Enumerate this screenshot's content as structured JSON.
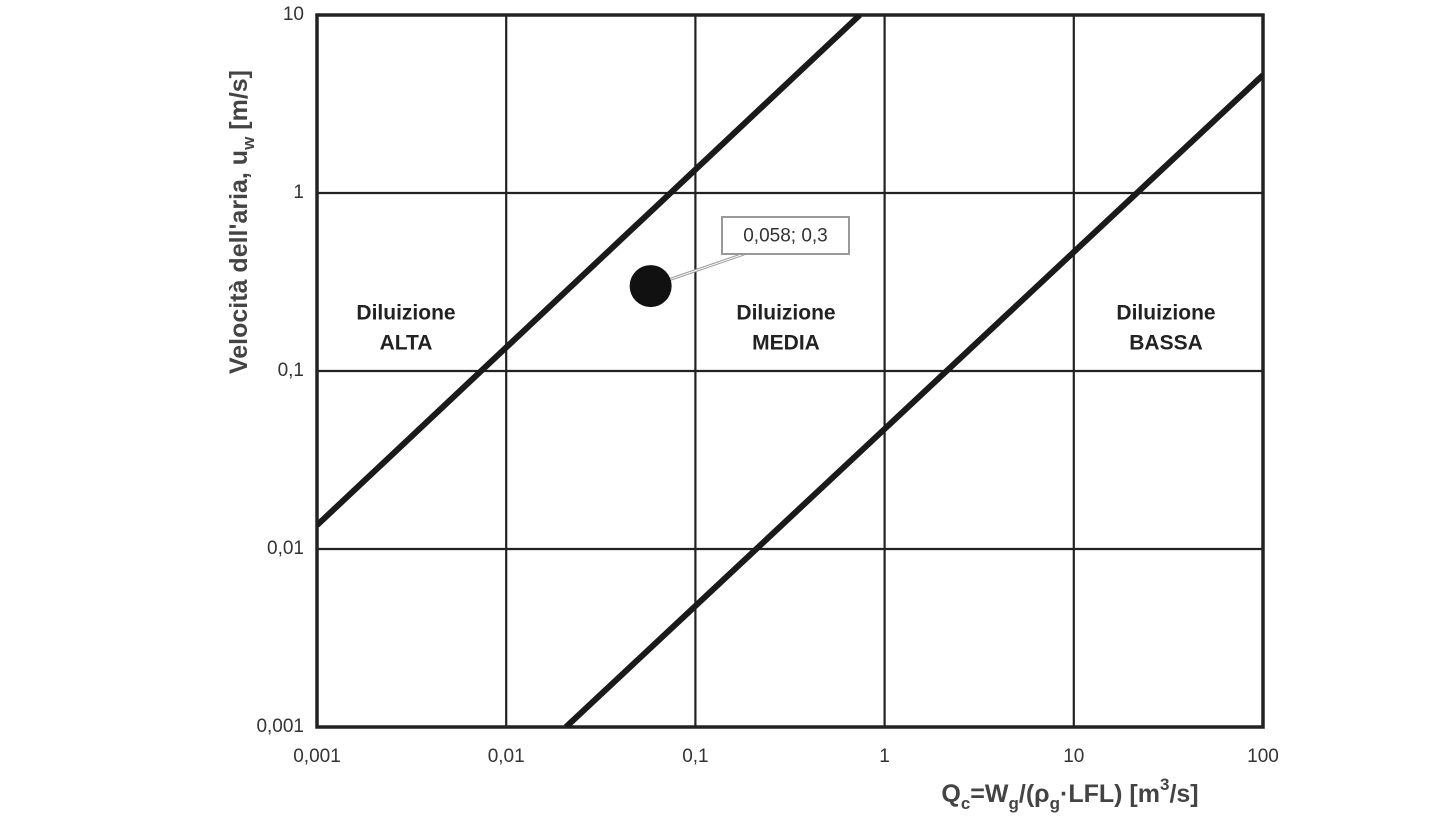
{
  "chart_data": {
    "type": "line",
    "xscale": "log",
    "yscale": "log",
    "grid": true,
    "xlim": [
      0.001,
      100
    ],
    "ylim": [
      0.001,
      10
    ],
    "xticks": [
      {
        "value": 0.001,
        "label": "0,001"
      },
      {
        "value": 0.01,
        "label": "0,01"
      },
      {
        "value": 0.1,
        "label": "0,1"
      },
      1,
      10,
      100
    ],
    "yticks": [
      {
        "value": 0.001,
        "label": "0,001"
      },
      {
        "value": 0.01,
        "label": "0,01"
      },
      {
        "value": 0.1,
        "label": "0,1"
      },
      1,
      10
    ],
    "x_label": [
      {
        "text": "Q"
      },
      {
        "text": "c",
        "sub": true
      },
      {
        "text": "=W"
      },
      {
        "text": "g",
        "sub": true
      },
      {
        "text": "/(ρ"
      },
      {
        "text": "g",
        "sub": true
      },
      {
        "text": "·LFL) [m"
      },
      {
        "text": "3",
        "sup": true
      },
      {
        "text": "/s]"
      }
    ],
    "y_label": [
      {
        "text": "Velocità dell'aria, u"
      },
      {
        "text": "w",
        "sub": true
      },
      {
        "text": " [m/s]"
      }
    ],
    "series": [
      {
        "color": "#1a1a1a",
        "x": [
          0.001,
          0.74
        ],
        "values": [
          0.0136,
          10
        ]
      },
      {
        "color": "#1a1a1a",
        "x": [
          0.0207,
          100
        ],
        "values": [
          0.001,
          4.6
        ]
      }
    ],
    "points": {
      "type": "scatter",
      "color": "#111111",
      "x": [
        0.058
      ],
      "values": [
        0.3
      ],
      "value_labels": [
        "0,058; 0,3"
      ]
    },
    "annotations": [
      [
        "Diluizione",
        "ALTA"
      ],
      [
        "Diluizione",
        "MEDIA"
      ],
      [
        "Diluizione",
        "BASSA"
      ]
    ]
  }
}
